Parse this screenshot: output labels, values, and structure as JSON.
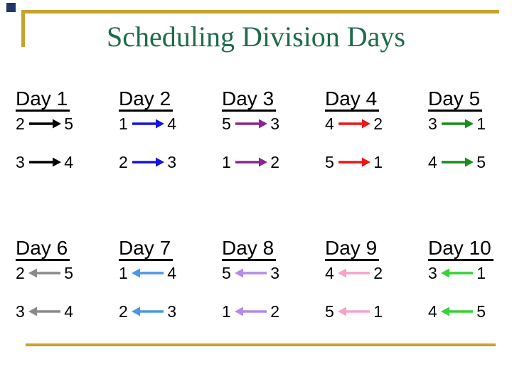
{
  "slide": {
    "title": "Scheduling Division Days",
    "title_color": "#1E6B4C"
  },
  "decor": {
    "gold": "#C5A42C",
    "corner_square": "#203864",
    "heading_underline": "#000000"
  },
  "days": [
    {
      "label": "Day 1",
      "direction": "right",
      "color": "#000000",
      "rows": [
        {
          "left": "2",
          "right": "5"
        },
        {
          "left": "3",
          "right": "4"
        }
      ]
    },
    {
      "label": "Day 2",
      "direction": "right",
      "color": "#1414E0",
      "rows": [
        {
          "left": "1",
          "right": "4"
        },
        {
          "left": "2",
          "right": "3"
        }
      ]
    },
    {
      "label": "Day 3",
      "direction": "right",
      "color": "#8B2590",
      "rows": [
        {
          "left": "5",
          "right": "3"
        },
        {
          "left": "1",
          "right": "2"
        }
      ]
    },
    {
      "label": "Day 4",
      "direction": "right",
      "color": "#EE1515",
      "rows": [
        {
          "left": "4",
          "right": "2"
        },
        {
          "left": "5",
          "right": "1"
        }
      ]
    },
    {
      "label": "Day 5",
      "direction": "right",
      "color": "#1A8C1A",
      "rows": [
        {
          "left": "3",
          "right": "1"
        },
        {
          "left": "4",
          "right": "5"
        }
      ]
    },
    {
      "label": "Day 6",
      "direction": "left",
      "color": "#8A8A8A",
      "rows": [
        {
          "left": "2",
          "right": "5"
        },
        {
          "left": "3",
          "right": "4"
        }
      ]
    },
    {
      "label": "Day 7",
      "direction": "left",
      "color": "#4E95E6",
      "rows": [
        {
          "left": "1",
          "right": "4"
        },
        {
          "left": "2",
          "right": "3"
        }
      ]
    },
    {
      "label": "Day 8",
      "direction": "left",
      "color": "#B48BE8",
      "rows": [
        {
          "left": "5",
          "right": "3"
        },
        {
          "left": "1",
          "right": "2"
        }
      ]
    },
    {
      "label": "Day 9",
      "direction": "left",
      "color": "#F7A3C8",
      "rows": [
        {
          "left": "4",
          "right": "2"
        },
        {
          "left": "5",
          "right": "1"
        }
      ]
    },
    {
      "label": "Day 10",
      "direction": "left",
      "color": "#33D433",
      "rows": [
        {
          "left": "3",
          "right": "1"
        },
        {
          "left": "4",
          "right": "5"
        }
      ]
    }
  ]
}
